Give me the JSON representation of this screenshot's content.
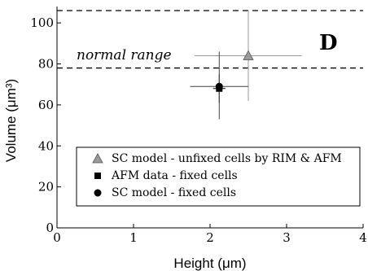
{
  "chart_data": {
    "type": "scatter",
    "panel_label": "D",
    "xlabel": "Height (μm)",
    "ylabel": "Volume (μm³)",
    "xlim": [
      0,
      4
    ],
    "ylim": [
      0,
      108
    ],
    "x_ticks": [
      0,
      1,
      2,
      3,
      4
    ],
    "y_ticks": [
      0,
      20,
      40,
      60,
      80,
      100
    ],
    "grid": false,
    "reference_lines": [
      {
        "style": "dashed",
        "y": 106
      },
      {
        "style": "dashed",
        "y": 78
      }
    ],
    "annotation": "normal range",
    "legend_position": "bottom-right",
    "series": [
      {
        "name": "SC model - unfixed cells by RIM & AFM",
        "marker": "triangle",
        "color": "#9a9a9a",
        "x": 2.5,
        "y": 84,
        "x_err": [
          0.7,
          0.7
        ],
        "y_err": [
          22,
          22
        ],
        "errcolor": "#9a9a9a"
      },
      {
        "name": "AFM data - fixed cells",
        "marker": "square",
        "color": "#000000",
        "x": 2.12,
        "y": 68,
        "x_err": [
          0.08,
          0.08
        ],
        "y_err": [
          7,
          7
        ],
        "errcolor": "#000000"
      },
      {
        "name": "SC model - fixed cells",
        "marker": "circle",
        "color": "#000000",
        "x": 2.12,
        "y": 69,
        "x_err": [
          0.38,
          0.38
        ],
        "y_err": [
          16,
          17
        ],
        "errcolor": "#444444"
      }
    ]
  }
}
